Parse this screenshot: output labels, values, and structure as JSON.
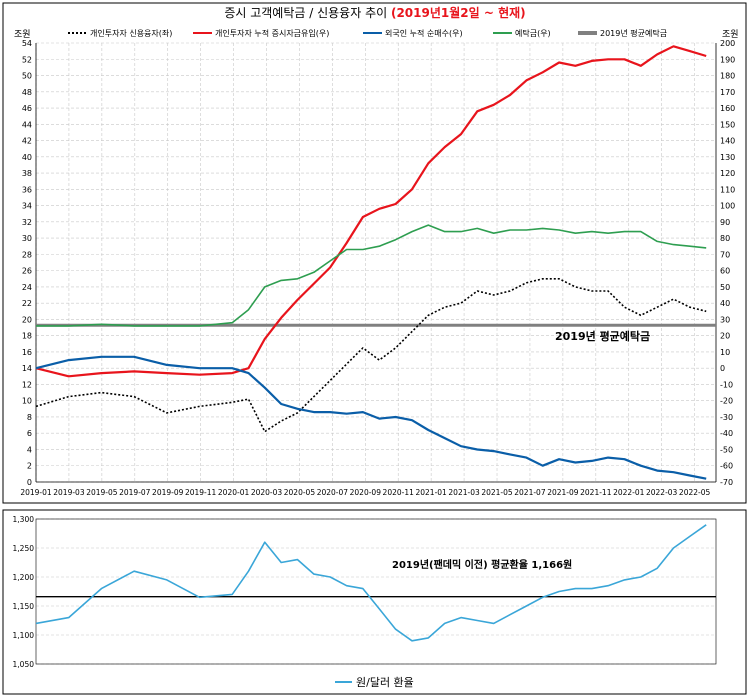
{
  "top_chart": {
    "title_prefix": "증시 고객예탁금 / 신용융자 추이 ",
    "title_highlight": "(2019년1월2일 ~ 현재)",
    "left_unit": "조원",
    "right_unit": "조원",
    "legend": [
      {
        "name": "개인투자자 신용융자(좌)",
        "color": "#000000",
        "style": "dotted"
      },
      {
        "name": "개인투자자 누적 증시자금유입(우)",
        "color": "#e8141c",
        "style": "solid"
      },
      {
        "name": "외국인 누적 순매수(우)",
        "color": "#0a5ea8",
        "style": "solid"
      },
      {
        "name": "예탁금(우)",
        "color": "#2e9e50",
        "style": "solid"
      },
      {
        "name": "2019년 평균예탁금",
        "color": "#808080",
        "style": "thick"
      }
    ],
    "annotation": "2019년 평균예탁금",
    "left_axis": {
      "min": 0,
      "max": 54,
      "ticks": [
        0,
        2,
        4,
        6,
        8,
        10,
        12,
        14,
        16,
        18,
        20,
        22,
        24,
        26,
        28,
        30,
        32,
        34,
        36,
        38,
        40,
        42,
        44,
        46,
        48,
        50,
        52,
        54
      ]
    },
    "right_axis": {
      "min": -70,
      "max": 200,
      "ticks": [
        -70,
        -60,
        -50,
        -40,
        -30,
        -20,
        -10,
        0,
        10,
        20,
        30,
        40,
        50,
        60,
        70,
        80,
        90,
        100,
        110,
        120,
        130,
        140,
        150,
        160,
        170,
        180,
        190,
        200
      ]
    },
    "x_labels": [
      "2019-01",
      "2019-03",
      "2019-05",
      "2019-07",
      "2019-09",
      "2019-11",
      "2020-01",
      "2020-03",
      "2020-05",
      "2020-07",
      "2020-09",
      "2020-11",
      "2021-01",
      "2021-03",
      "2021-05",
      "2021-07",
      "2021-09",
      "2021-11",
      "2022-01",
      "2022-03",
      "2022-05"
    ]
  },
  "bottom_chart": {
    "annotation": "2019년(팬데믹 이전) 평균환율 1,166원",
    "legend_label": "원/달러 환율",
    "line_color": "#3aa6d8",
    "axis": {
      "min": 1050,
      "max": 1300,
      "ticks": [
        "1,050",
        "1,100",
        "1,150",
        "1,200",
        "1,250",
        "1,300"
      ]
    },
    "reference_value": 1166
  },
  "chart_data": [
    {
      "type": "line",
      "title": "증시 고객예탁금 / 신용융자 추이 (2019년1월2일 ~ 현재)",
      "x": [
        "2019-01",
        "2019-03",
        "2019-05",
        "2019-07",
        "2019-09",
        "2019-11",
        "2020-01",
        "2020-02",
        "2020-03",
        "2020-04",
        "2020-05",
        "2020-06",
        "2020-07",
        "2020-08",
        "2020-09",
        "2020-10",
        "2020-11",
        "2020-12",
        "2021-01",
        "2021-02",
        "2021-03",
        "2021-04",
        "2021-05",
        "2021-06",
        "2021-07",
        "2021-08",
        "2021-09",
        "2021-10",
        "2021-11",
        "2021-12",
        "2022-01",
        "2022-02",
        "2022-03",
        "2022-04",
        "2022-05",
        "2022-06"
      ],
      "series": [
        {
          "name": "개인투자자 신용융자(좌)",
          "axis": "left",
          "values": [
            9.3,
            10.5,
            11.0,
            10.5,
            8.5,
            9.3,
            9.8,
            10.2,
            6.2,
            7.5,
            8.5,
            10.5,
            12.5,
            14.5,
            16.5,
            15.0,
            16.5,
            18.5,
            20.5,
            21.5,
            22.0,
            23.5,
            23.0,
            23.5,
            24.5,
            25.0,
            25.0,
            24.0,
            23.5,
            23.5,
            21.5,
            20.5,
            21.5,
            22.5,
            21.5,
            21.0
          ]
        },
        {
          "name": "개인투자자 누적 증시자금유입(우)",
          "axis": "right",
          "values": [
            0,
            -5,
            -3,
            -2,
            -3,
            -4,
            -3,
            0,
            18,
            31,
            42,
            52,
            62,
            77,
            93,
            98,
            101,
            110,
            126,
            136,
            144,
            158,
            162,
            168,
            177,
            182,
            188,
            186,
            189,
            190,
            190,
            186,
            193,
            198,
            195,
            192
          ]
        },
        {
          "name": "외국인 누적 순매수(우)",
          "axis": "right",
          "values": [
            0,
            5,
            7,
            7,
            2,
            0,
            0,
            -3,
            -12,
            -22,
            -25,
            -27,
            -27,
            -28,
            -27,
            -31,
            -30,
            -32,
            -38,
            -43,
            -48,
            -50,
            -51,
            -53,
            -55,
            -60,
            -56,
            -58,
            -57,
            -55,
            -56,
            -60,
            -63,
            -64,
            -66,
            -68
          ]
        },
        {
          "name": "예탁금(우)",
          "axis": "right",
          "values": [
            26,
            26,
            27,
            26,
            26,
            26,
            28,
            36,
            50,
            54,
            55,
            59,
            66,
            73,
            73,
            75,
            79,
            84,
            88,
            84,
            84,
            86,
            83,
            85,
            85,
            86,
            85,
            83,
            84,
            83,
            84,
            84,
            78,
            76,
            75,
            74
          ]
        }
      ],
      "reference_line": {
        "name": "2019년 평균예탁금",
        "axis": "right",
        "value": 26.4
      },
      "ylim_left": [
        0,
        54
      ],
      "ylim_right": [
        -70,
        200
      ]
    },
    {
      "type": "line",
      "title": "",
      "x": [
        "2019-01",
        "2019-03",
        "2019-05",
        "2019-07",
        "2019-09",
        "2019-11",
        "2020-01",
        "2020-02",
        "2020-03",
        "2020-04",
        "2020-05",
        "2020-06",
        "2020-07",
        "2020-08",
        "2020-09",
        "2020-10",
        "2020-11",
        "2020-12",
        "2021-01",
        "2021-02",
        "2021-03",
        "2021-04",
        "2021-05",
        "2021-06",
        "2021-07",
        "2021-08",
        "2021-09",
        "2021-10",
        "2021-11",
        "2021-12",
        "2022-01",
        "2022-02",
        "2022-03",
        "2022-04",
        "2022-05",
        "2022-06"
      ],
      "series": [
        {
          "name": "원/달러 환율",
          "values": [
            1120,
            1130,
            1180,
            1210,
            1195,
            1165,
            1170,
            1210,
            1260,
            1225,
            1230,
            1205,
            1200,
            1185,
            1180,
            1145,
            1110,
            1090,
            1095,
            1120,
            1130,
            1125,
            1120,
            1135,
            1150,
            1165,
            1175,
            1180,
            1180,
            1185,
            1195,
            1200,
            1215,
            1250,
            1270,
            1290
          ]
        }
      ],
      "reference_line": {
        "name": "2019년(팬데믹 이전) 평균환율 1,166원",
        "value": 1166
      },
      "ylim": [
        1050,
        1300
      ]
    }
  ]
}
